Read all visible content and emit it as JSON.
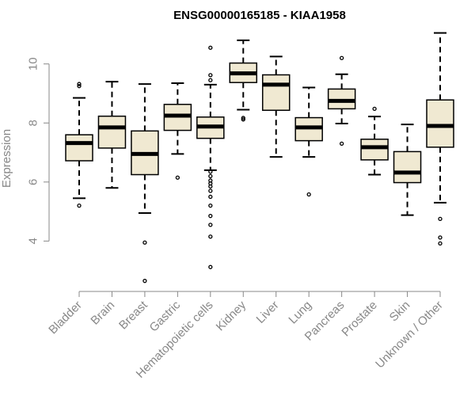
{
  "chart_data": {
    "type": "boxplot",
    "title": "ENSG00000165185 - KIAA1958",
    "ylabel": "Expression",
    "xlabel": "",
    "ylim": [
      2.4,
      11.2
    ],
    "yticks": [
      4,
      6,
      8,
      10
    ],
    "box_fill": "#f0e9d2",
    "categories": [
      "Bladder",
      "Brain",
      "Breast",
      "Gastric",
      "Hematopoietic cells",
      "Kidney",
      "Liver",
      "Lung",
      "Pancreas",
      "Prostate",
      "Skin",
      "Unknown / Other"
    ],
    "boxes": [
      {
        "whislo": 5.45,
        "q1": 6.72,
        "med": 7.32,
        "q3": 7.6,
        "whishi": 8.85,
        "fliers": [
          5.2,
          9.25,
          9.32
        ]
      },
      {
        "whislo": 5.8,
        "q1": 7.15,
        "med": 7.85,
        "q3": 8.23,
        "whishi": 9.4,
        "fliers": []
      },
      {
        "whislo": 4.95,
        "q1": 6.25,
        "med": 6.95,
        "q3": 7.73,
        "whishi": 9.32,
        "fliers": [
          3.95,
          2.65
        ]
      },
      {
        "whislo": 6.95,
        "q1": 7.75,
        "med": 8.25,
        "q3": 8.63,
        "whishi": 9.35,
        "fliers": [
          6.15
        ]
      },
      {
        "whislo": 6.4,
        "q1": 7.48,
        "med": 7.88,
        "q3": 8.2,
        "whishi": 9.3,
        "fliers": [
          6.35,
          6.2,
          6.05,
          5.95,
          5.85,
          5.7,
          5.5,
          5.2,
          4.85,
          4.55,
          4.15,
          3.12,
          9.45,
          9.62,
          10.55
        ]
      },
      {
        "whislo": 8.45,
        "q1": 9.37,
        "med": 9.68,
        "q3": 10.03,
        "whishi": 10.8,
        "fliers": [
          8.12,
          8.17
        ]
      },
      {
        "whislo": 6.85,
        "q1": 8.43,
        "med": 9.3,
        "q3": 9.63,
        "whishi": 10.25,
        "fliers": []
      },
      {
        "whislo": 6.85,
        "q1": 7.4,
        "med": 7.85,
        "q3": 8.18,
        "whishi": 9.2,
        "fliers": [
          5.58
        ]
      },
      {
        "whislo": 7.98,
        "q1": 8.48,
        "med": 8.75,
        "q3": 9.15,
        "whishi": 9.65,
        "fliers": [
          7.3,
          10.2
        ]
      },
      {
        "whislo": 6.25,
        "q1": 6.75,
        "med": 7.18,
        "q3": 7.45,
        "whishi": 8.22,
        "fliers": [
          8.48
        ]
      },
      {
        "whislo": 4.88,
        "q1": 5.98,
        "med": 6.32,
        "q3": 7.03,
        "whishi": 7.95,
        "fliers": []
      },
      {
        "whislo": 5.3,
        "q1": 7.18,
        "med": 7.9,
        "q3": 8.78,
        "whishi": 11.05,
        "fliers": [
          4.75,
          4.12,
          3.92
        ]
      }
    ]
  }
}
